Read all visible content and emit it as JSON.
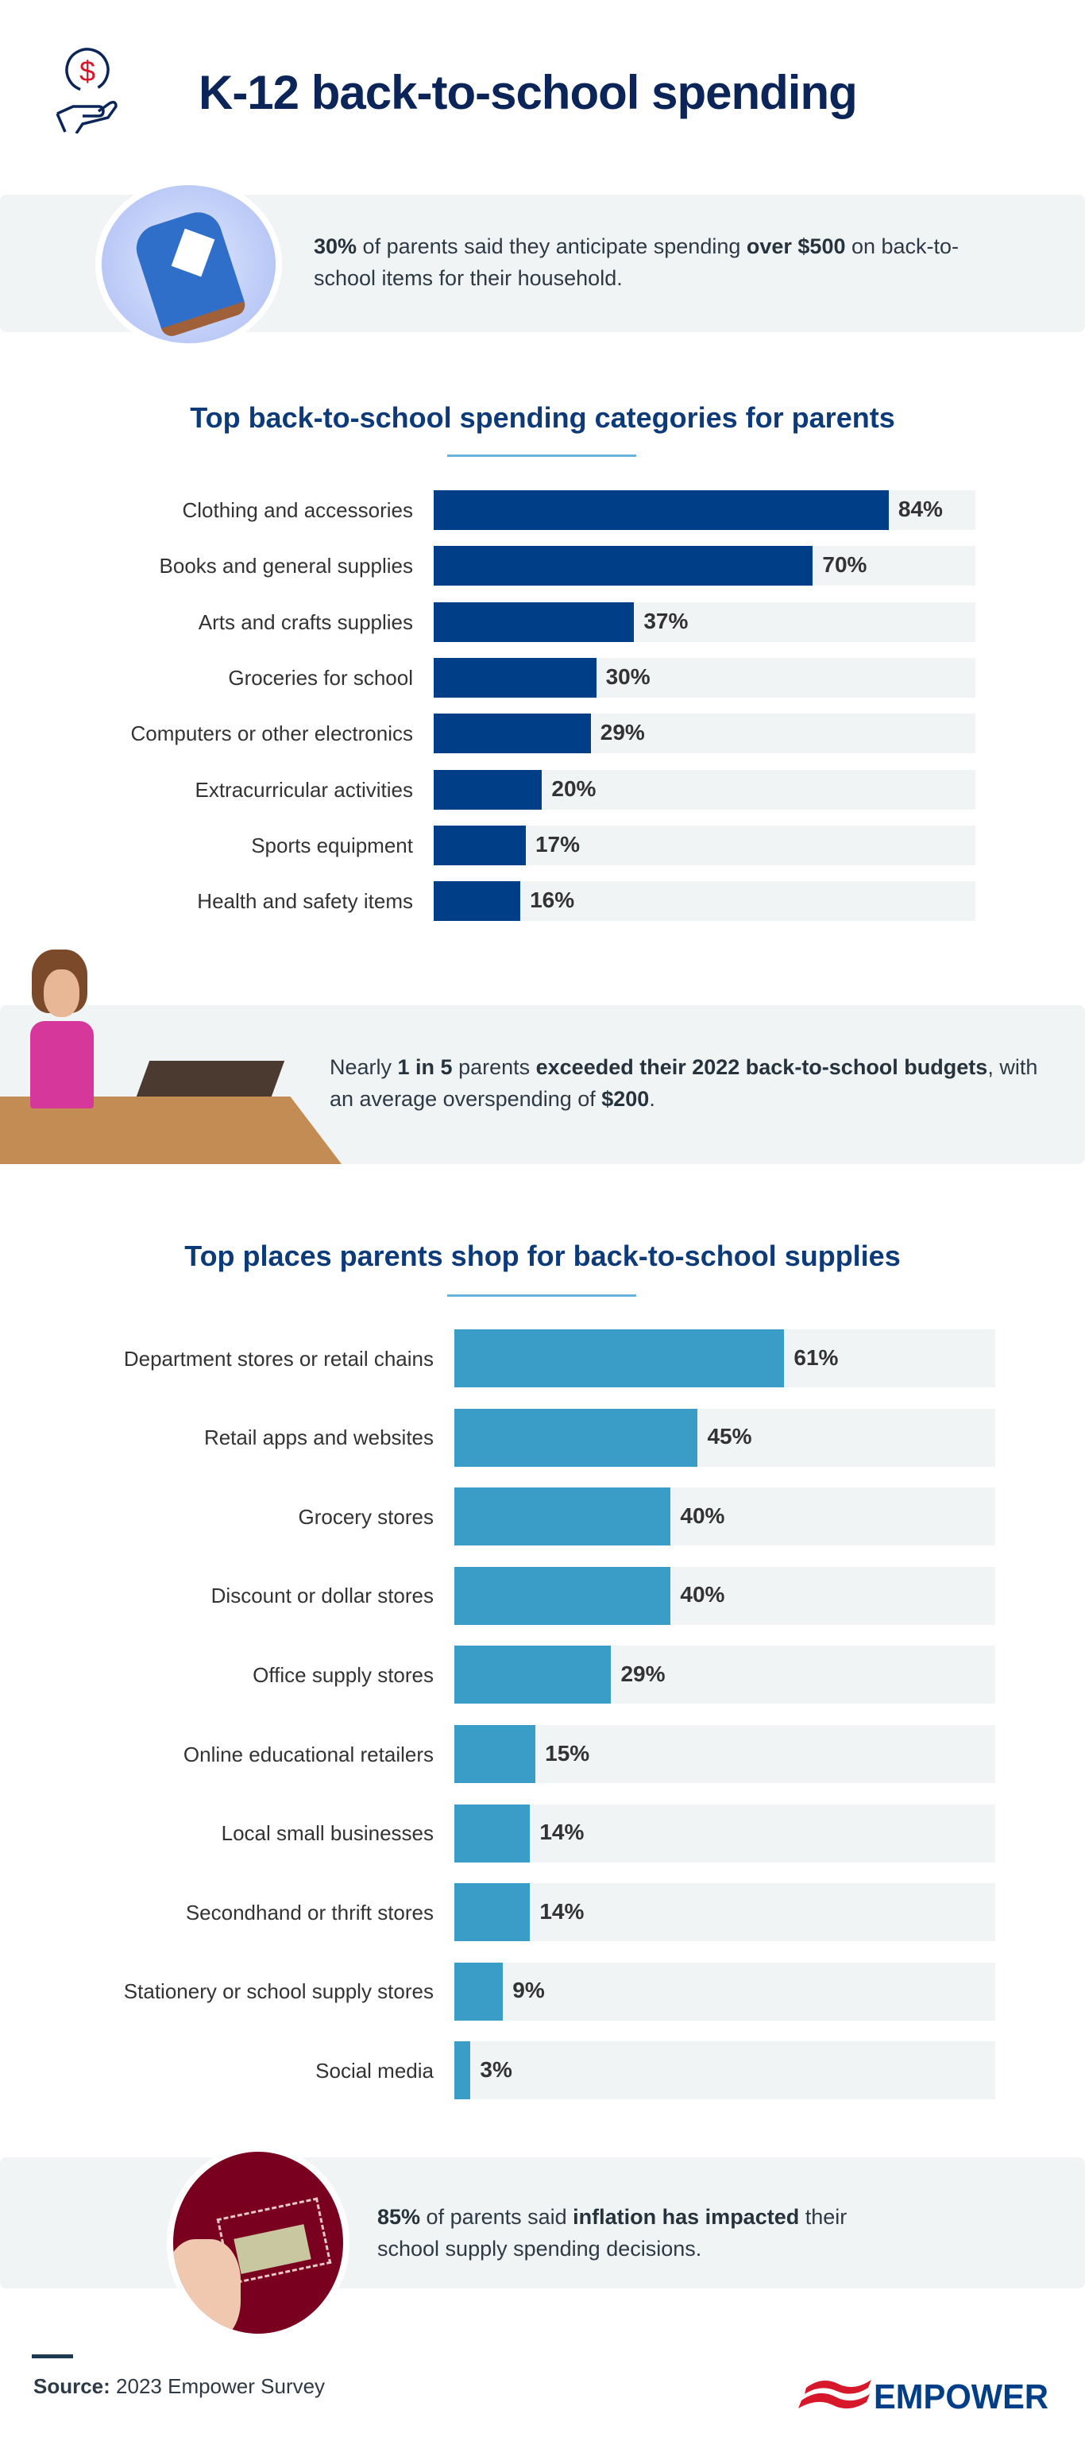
{
  "header": {
    "title": "K-12 back-to-school spending",
    "icon": "hand-holding-dollar-icon"
  },
  "callouts": [
    {
      "image": "backpack-photo",
      "segments": [
        {
          "text": "30%",
          "bold": true
        },
        {
          "text": " of parents said they anticipate spending ",
          "bold": false
        },
        {
          "text": "over $500",
          "bold": true
        },
        {
          "text": " on back-to-school items for their household.",
          "bold": false
        }
      ]
    },
    {
      "image": "stressed-woman-photo",
      "segments": [
        {
          "text": "Nearly ",
          "bold": false
        },
        {
          "text": "1 in 5",
          "bold": true
        },
        {
          "text": " parents ",
          "bold": false
        },
        {
          "text": "exceeded their 2022 back-to-school budgets",
          "bold": true
        },
        {
          "text": ", with an average overspending of ",
          "bold": false
        },
        {
          "text": "$200",
          "bold": true
        },
        {
          "text": ".",
          "bold": false
        }
      ]
    },
    {
      "image": "hand-holding-dollar-bill-photo",
      "segments": [
        {
          "text": "85%",
          "bold": true
        },
        {
          "text": " of parents said ",
          "bold": false
        },
        {
          "text": "inflation has impacted",
          "bold": true
        },
        {
          "text": " their school supply spending decisions.",
          "bold": false
        }
      ]
    }
  ],
  "chart_data": [
    {
      "type": "bar",
      "orientation": "horizontal",
      "title": "Top back-to-school spending categories for parents",
      "categories": [
        "Clothing and accessories",
        "Books and general supplies",
        "Arts and crafts supplies",
        "Groceries for school",
        "Computers or other electronics",
        "Extracurricular activities",
        "Sports equipment",
        "Health and safety items"
      ],
      "values": [
        84,
        70,
        37,
        30,
        29,
        20,
        17,
        16
      ],
      "value_labels": [
        "84%",
        "70%",
        "37%",
        "30%",
        "29%",
        "20%",
        "17%",
        "16%"
      ],
      "xlim": [
        0,
        100
      ],
      "grid": false,
      "bar_color": "#003f87",
      "track_color": "#f1f4f5"
    },
    {
      "type": "bar",
      "orientation": "horizontal",
      "title": "Top places parents shop for back-to-school supplies",
      "categories": [
        "Department stores or retail chains",
        "Retail apps and websites",
        "Grocery stores",
        "Discount or dollar stores",
        "Office supply stores",
        "Online educational retailers",
        "Local small businesses",
        "Secondhand or thrift stores",
        "Stationery or school supply stores",
        "Social media"
      ],
      "values": [
        61,
        45,
        40,
        40,
        29,
        15,
        14,
        14,
        9,
        3
      ],
      "value_labels": [
        "61%",
        "45%",
        "40%",
        "40%",
        "29%",
        "15%",
        "14%",
        "14%",
        "9%",
        "3%"
      ],
      "xlim": [
        0,
        100
      ],
      "grid": false,
      "bar_color": "#3a9dc8",
      "track_color": "#f1f4f5"
    }
  ],
  "footer": {
    "source_label": "Source:",
    "source_text": " 2023 Empower Survey",
    "logo_text": "EMPOWER",
    "logo_colors": {
      "red": "#d7182a",
      "blue": "#003f87"
    }
  }
}
